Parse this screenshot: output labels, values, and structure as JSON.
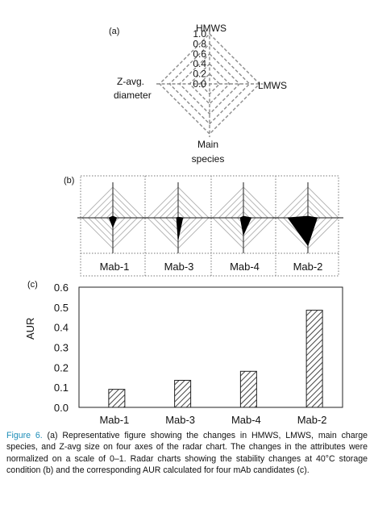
{
  "colors": {
    "caption_label": "#1d8db8",
    "axis": "#888888",
    "fill": "#000000",
    "bar_hatch": "#444444"
  },
  "panel_a": {
    "tag": "(a)",
    "axes": {
      "top": "HMWS",
      "right": "LMWS",
      "bottom_line1": "Main",
      "bottom_line2": "species",
      "left_line1": "Z-avg.",
      "left_line2": "diameter"
    },
    "ticks": [
      "0.0",
      "0.2",
      "0.4",
      "0.6",
      "0.8",
      "1.0"
    ]
  },
  "panel_b": {
    "tag": "(b)",
    "names": [
      "Mab-1",
      "Mab-3",
      "Mab-4",
      "Mab-2"
    ]
  },
  "panel_c": {
    "tag": "(c)",
    "ylabel": "AUR"
  },
  "chart_data": [
    {
      "type": "radar",
      "panel": "(b)",
      "axes": [
        "HMWS",
        "LMWS",
        "Main species",
        "Z-avg. diameter"
      ],
      "range": [
        0,
        1
      ],
      "series": [
        {
          "name": "Mab-1",
          "values": [
            0.05,
            0.12,
            0.3,
            0.12
          ]
        },
        {
          "name": "Mab-3",
          "values": [
            0.02,
            0.15,
            0.7,
            0.05
          ]
        },
        {
          "name": "Mab-4",
          "values": [
            0.05,
            0.25,
            0.55,
            0.1
          ]
        },
        {
          "name": "Mab-2",
          "values": [
            0.05,
            0.3,
            0.9,
            0.65
          ]
        }
      ]
    },
    {
      "type": "bar",
      "panel": "(c)",
      "categories": [
        "Mab-1",
        "Mab-3",
        "Mab-4",
        "Mab-2"
      ],
      "values": [
        0.09,
        0.135,
        0.18,
        0.485
      ],
      "ylabel": "AUR",
      "ylim": [
        0,
        0.6
      ],
      "yticks": [
        "0.0",
        "0.1",
        "0.2",
        "0.3",
        "0.4",
        "0.5",
        "0.6"
      ],
      "pattern": "diagonal-hatch"
    }
  ],
  "caption": {
    "label": "Figure 6.",
    "text": "(a) Representative figure showing the changes in HMWS, LMWS, main charge species, and Z-avg size on four axes of the radar chart. The changes in the attributes were normalized on a scale of 0–1. Radar charts showing the stability changes at 40°C storage condition (b) and the corresponding AUR calculated for four mAb candidates (c)."
  }
}
